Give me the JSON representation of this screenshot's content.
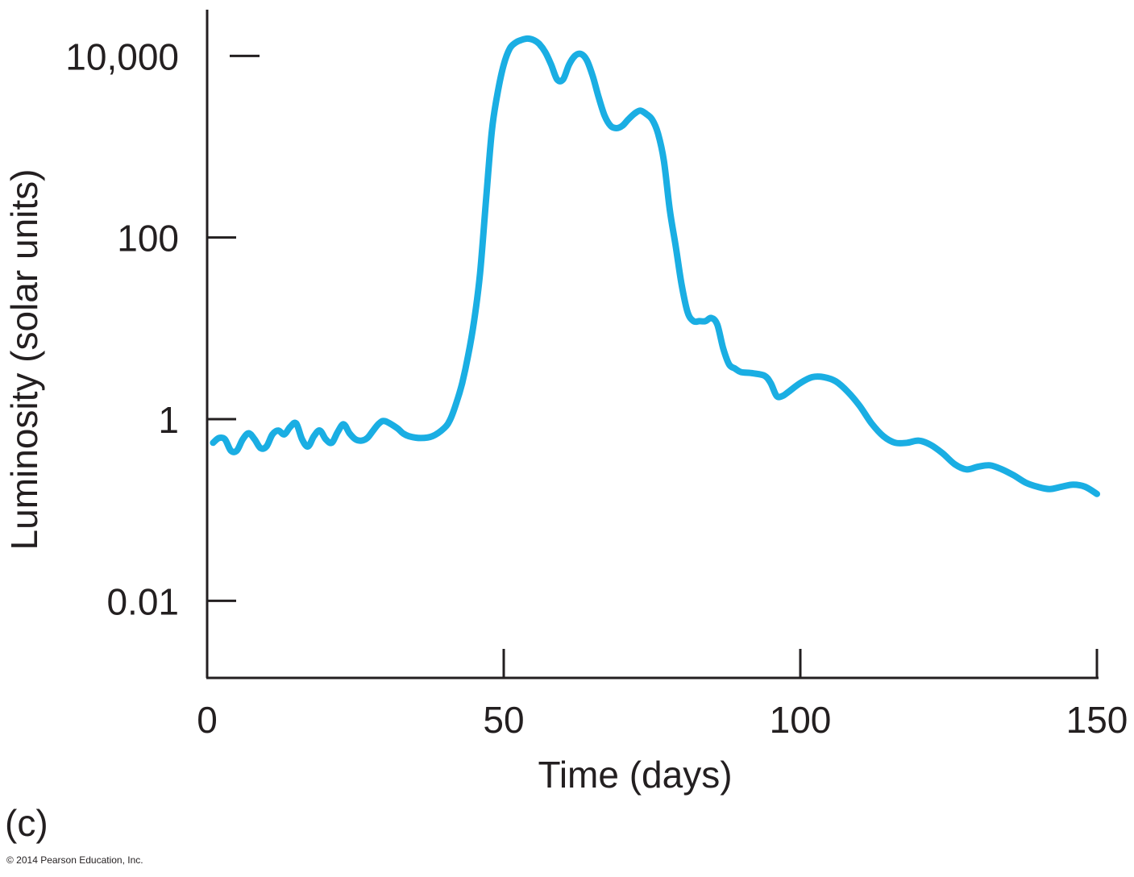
{
  "panel_label": "(c)",
  "copyright": "© 2014 Pearson Education, Inc.",
  "chart_data": {
    "type": "line",
    "xlabel": "Time (days)",
    "ylabel": "Luminosity (solar units)",
    "xlim": [
      0,
      150
    ],
    "ylim": [
      0.001,
      30000
    ],
    "yscale": "log",
    "x_ticks": [
      0,
      50,
      100,
      150
    ],
    "x_tick_labels": [
      "0",
      "50",
      "100",
      "150"
    ],
    "y_ticks": [
      0.01,
      1,
      100,
      10000
    ],
    "y_tick_labels": [
      "0.01",
      "1",
      "100",
      "10,000"
    ],
    "grid": false,
    "line_color": "#1aaee3",
    "series": [
      {
        "x": [
          1,
          2,
          3,
          4,
          5,
          6,
          7,
          8,
          9,
          10,
          11,
          12,
          13,
          14,
          15,
          16,
          17,
          18,
          19,
          20,
          21,
          22,
          23,
          24,
          25,
          26,
          27,
          28,
          29,
          30,
          32,
          33,
          34,
          36,
          38,
          40,
          41,
          42,
          43,
          44,
          45,
          46,
          47,
          48,
          49,
          50,
          51,
          52,
          53,
          54,
          55,
          56,
          57,
          58,
          59,
          60,
          61,
          62,
          63,
          64,
          65,
          66,
          67,
          68,
          69,
          70,
          71,
          72,
          73,
          74,
          75,
          76,
          77,
          78,
          79,
          80,
          81,
          82,
          83,
          84,
          85,
          86,
          87,
          88,
          89,
          90,
          92,
          94,
          95,
          96,
          97,
          98,
          100,
          102,
          104,
          106,
          108,
          110,
          112,
          114,
          116,
          118,
          120,
          122,
          124,
          126,
          128,
          130,
          132,
          134,
          136,
          138,
          140,
          142,
          144,
          146,
          148,
          150
        ],
        "y": [
          0.55,
          0.62,
          0.6,
          0.45,
          0.45,
          0.6,
          0.7,
          0.6,
          0.48,
          0.5,
          0.68,
          0.75,
          0.68,
          0.82,
          0.9,
          0.6,
          0.5,
          0.65,
          0.75,
          0.6,
          0.55,
          0.72,
          0.88,
          0.7,
          0.6,
          0.58,
          0.62,
          0.75,
          0.9,
          0.95,
          0.8,
          0.7,
          0.65,
          0.62,
          0.65,
          0.8,
          1.0,
          1.5,
          2.5,
          5,
          12,
          40,
          250,
          1500,
          4000,
          8000,
          12000,
          14000,
          15000,
          15500,
          15000,
          13500,
          11000,
          8000,
          5500,
          5500,
          8000,
          10000,
          10500,
          9000,
          6000,
          3500,
          2200,
          1700,
          1600,
          1700,
          2000,
          2300,
          2500,
          2300,
          2000,
          1400,
          700,
          200,
          80,
          30,
          15,
          12,
          12,
          12,
          13,
          11,
          6,
          4,
          3.6,
          3.3,
          3.2,
          3.0,
          2.5,
          1.8,
          1.8,
          2.0,
          2.5,
          2.9,
          2.9,
          2.6,
          2.0,
          1.4,
          0.9,
          0.65,
          0.55,
          0.55,
          0.58,
          0.52,
          0.42,
          0.32,
          0.28,
          0.3,
          0.31,
          0.28,
          0.24,
          0.2,
          0.18,
          0.17,
          0.18,
          0.19,
          0.18,
          0.15
        ]
      }
    ]
  }
}
